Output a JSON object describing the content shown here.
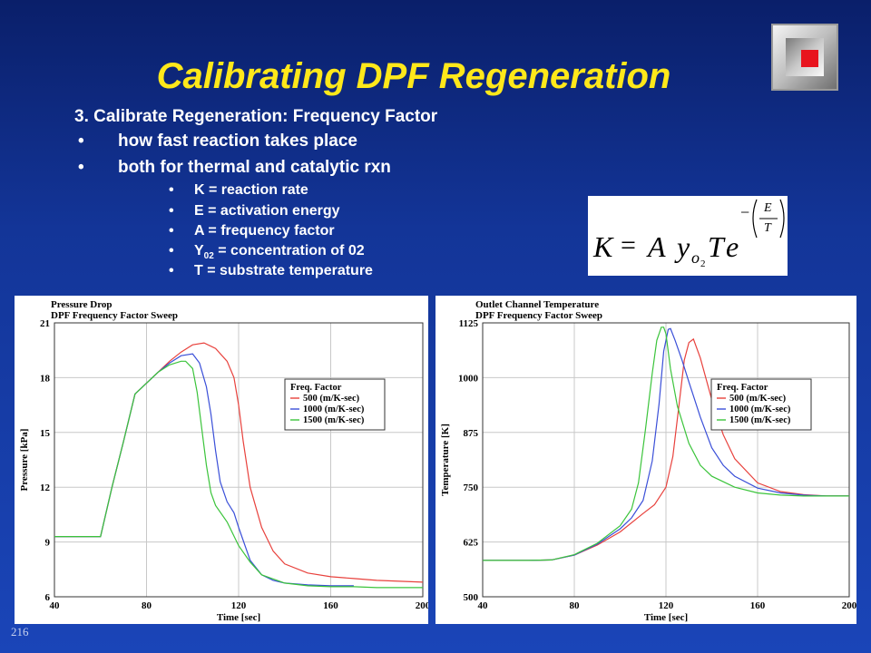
{
  "slide": {
    "title": "Calibrating DPF Regeneration",
    "number": "216"
  },
  "content": {
    "heading": "3. Calibrate Regeneration: Frequency Factor",
    "bullets": [
      "how fast reaction takes place",
      "both for thermal and catalytic rxn"
    ],
    "sub_bullets": {
      "k": "K = reaction rate",
      "e": "E = activation energy",
      "a": "A = frequency factor",
      "y_prefix": "Y",
      "y_subscript": "02",
      "y_suffix": "= concentration of 02",
      "t": "T = substrate temperature"
    },
    "bullet_glyph": "•"
  },
  "equation": {
    "lhs": "K",
    "equals": "=",
    "a": "A",
    "y": "y",
    "y_sub": "o",
    "y_sub2": "2",
    "t": "T",
    "e": "e",
    "minus": "−",
    "num": "E",
    "den": "T"
  },
  "logo": {
    "icon": "square-logo-icon",
    "accent": "#e8141e"
  },
  "colors": {
    "title": "#ffe81a",
    "text": "#ffffff",
    "series_500": "#e8413c",
    "series_1000": "#3a4fd8",
    "series_1500": "#3bc43b"
  },
  "chart_data": [
    {
      "type": "line",
      "title": "Pressure Drop",
      "subtitle": "DPF Frequency Factor Sweep",
      "xlabel": "Time [sec]",
      "ylabel": "Pressure [kPa]",
      "xlim": [
        40,
        200
      ],
      "ylim": [
        6,
        21
      ],
      "xticks": [
        40,
        80,
        120,
        160,
        200
      ],
      "yticks": [
        6,
        9,
        12,
        15,
        18,
        21
      ],
      "grid": true,
      "legend_title": "Freq. Factor",
      "legend_position": "upper-right",
      "series": [
        {
          "name": "500 (m/K-sec)",
          "color": "#e8413c",
          "x": [
            40,
            60,
            65,
            70,
            75,
            80,
            85,
            90,
            95,
            100,
            105,
            110,
            115,
            118,
            120,
            122,
            125,
            130,
            135,
            140,
            150,
            160,
            170,
            180,
            190,
            200
          ],
          "y": [
            9.3,
            9.3,
            12.0,
            14.5,
            17.1,
            17.7,
            18.3,
            18.9,
            19.4,
            19.8,
            19.9,
            19.6,
            18.9,
            18.0,
            16.5,
            14.5,
            12.0,
            9.8,
            8.5,
            7.8,
            7.3,
            7.1,
            7.0,
            6.9,
            6.85,
            6.8
          ]
        },
        {
          "name": "1000 (m/K-sec)",
          "color": "#3a4fd8",
          "x": [
            40,
            60,
            65,
            70,
            75,
            80,
            85,
            90,
            95,
            100,
            103,
            106,
            108,
            110,
            112,
            115,
            118,
            120,
            125,
            130,
            135,
            140,
            150,
            160,
            170
          ],
          "y": [
            9.3,
            9.3,
            12.0,
            14.5,
            17.1,
            17.7,
            18.3,
            18.8,
            19.2,
            19.3,
            18.8,
            17.5,
            16.0,
            14.0,
            12.3,
            11.2,
            10.6,
            9.8,
            8.0,
            7.2,
            6.9,
            6.75,
            6.65,
            6.6,
            6.6
          ]
        },
        {
          "name": "1500 (m/K-sec)",
          "color": "#3bc43b",
          "x": [
            40,
            60,
            65,
            70,
            75,
            80,
            85,
            90,
            95,
            97,
            100,
            102,
            104,
            106,
            108,
            110,
            115,
            120,
            125,
            130,
            140,
            150,
            160,
            170,
            180,
            190,
            200
          ],
          "y": [
            9.3,
            9.3,
            12.0,
            14.5,
            17.1,
            17.7,
            18.3,
            18.7,
            18.9,
            18.9,
            18.5,
            17.2,
            15.2,
            13.2,
            11.7,
            11.0,
            10.1,
            8.8,
            7.9,
            7.2,
            6.75,
            6.6,
            6.55,
            6.55,
            6.5,
            6.5,
            6.5
          ]
        }
      ]
    },
    {
      "type": "line",
      "title": "Outlet Channel Temperature",
      "subtitle": "DPF Frequency Factor Sweep",
      "xlabel": "Time [sec]",
      "ylabel": "Temperature [K]",
      "xlim": [
        40,
        200
      ],
      "ylim": [
        500,
        1125
      ],
      "xticks": [
        40,
        80,
        120,
        160,
        200
      ],
      "yticks": [
        500,
        625,
        750,
        875,
        1000,
        1125
      ],
      "grid": true,
      "legend_title": "Freq. Factor",
      "legend_position": "upper-right",
      "series": [
        {
          "name": "500 (m/K-sec)",
          "color": "#e8413c",
          "x": [
            40,
            60,
            70,
            80,
            90,
            100,
            110,
            115,
            120,
            123,
            126,
            128,
            130,
            132,
            135,
            140,
            145,
            150,
            160,
            170,
            180,
            190,
            200
          ],
          "y": [
            583,
            583,
            584,
            595,
            618,
            648,
            690,
            710,
            750,
            820,
            950,
            1040,
            1080,
            1088,
            1045,
            950,
            870,
            815,
            760,
            740,
            733,
            730,
            730
          ]
        },
        {
          "name": "1000 (m/K-sec)",
          "color": "#3a4fd8",
          "x": [
            40,
            60,
            70,
            80,
            90,
            100,
            105,
            110,
            114,
            117,
            119,
            121,
            122,
            124,
            127,
            130,
            135,
            140,
            145,
            150,
            160,
            170,
            180,
            190,
            200
          ],
          "y": [
            583,
            583,
            584,
            595,
            620,
            655,
            680,
            720,
            810,
            940,
            1060,
            1110,
            1112,
            1085,
            1040,
            990,
            910,
            840,
            800,
            775,
            748,
            737,
            732,
            730,
            730
          ]
        },
        {
          "name": "1500 (m/K-sec)",
          "color": "#3bc43b",
          "x": [
            40,
            60,
            70,
            80,
            90,
            100,
            105,
            108,
            111,
            114,
            116,
            118,
            119,
            120,
            122,
            125,
            130,
            135,
            140,
            150,
            160,
            170,
            180,
            190,
            200
          ],
          "y": [
            583,
            583,
            584,
            596,
            622,
            662,
            700,
            760,
            880,
            1010,
            1085,
            1115,
            1115,
            1100,
            1020,
            935,
            850,
            800,
            775,
            750,
            737,
            732,
            730,
            730,
            730
          ]
        }
      ]
    }
  ]
}
